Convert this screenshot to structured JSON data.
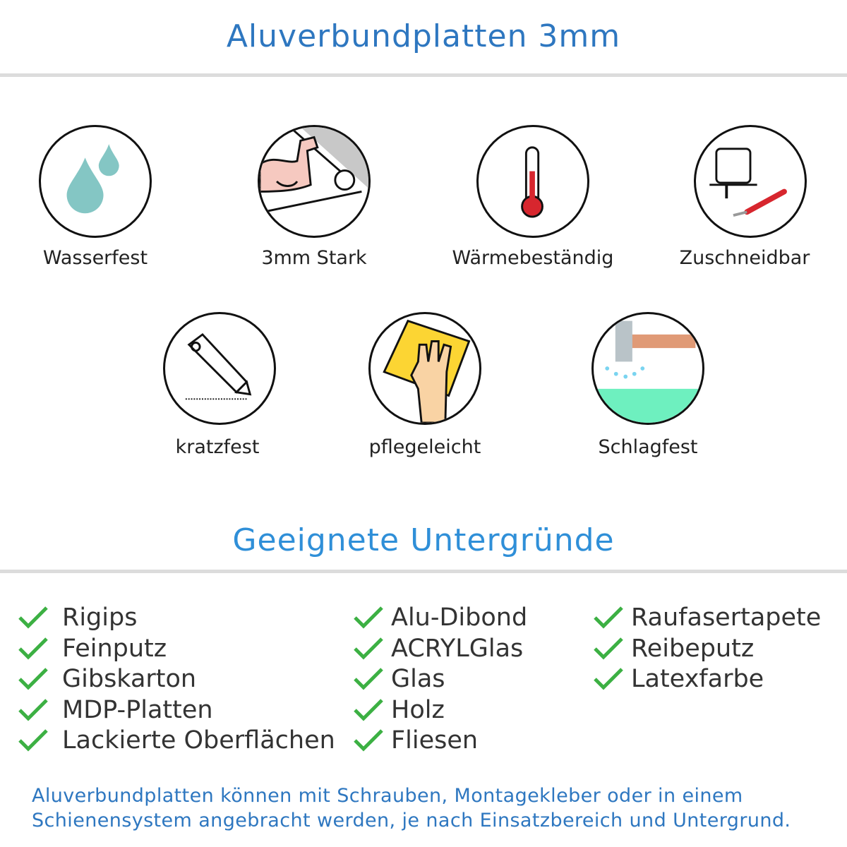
{
  "header": {
    "title": "Aluverbundplatten 3mm"
  },
  "features": [
    {
      "label": "Wasserfest",
      "icon": "water-drops-icon"
    },
    {
      "label": "3mm Stark",
      "icon": "strong-arm-icon"
    },
    {
      "label": "Wärmebeständig",
      "icon": "thermometer-icon"
    },
    {
      "label": "Zuschneidbar",
      "icon": "jigsaw-knife-icon"
    },
    {
      "label": "kratzfest",
      "icon": "cutter-knife-icon"
    },
    {
      "label": "pflegeleicht",
      "icon": "hand-sponge-icon"
    },
    {
      "label": "Schlagfest",
      "icon": "hammer-icon"
    }
  ],
  "substrates": {
    "title": "Geeignete Untergründe",
    "columns": [
      [
        "Rigips",
        "Feinputz",
        "Gibskarton",
        "MDP-Platten",
        "Lackierte Oberflächen"
      ],
      [
        "Alu-Dibond",
        "ACRYLGlas",
        "Glas",
        "Holz",
        "Fliesen"
      ],
      [
        "Raufasertapete",
        "Reibeputz",
        "Latexfarbe"
      ]
    ],
    "check_color": "#3cb043"
  },
  "footer": {
    "line1": "Aluverbundplatten können mit Schrauben, Montagekleber oder in einem",
    "line2": "Schienensystem angebracht werden, je nach Einsatzbereich und Untergrund."
  },
  "colors": {
    "title": "#2e77c0",
    "subtitle": "#2f8fd8"
  }
}
